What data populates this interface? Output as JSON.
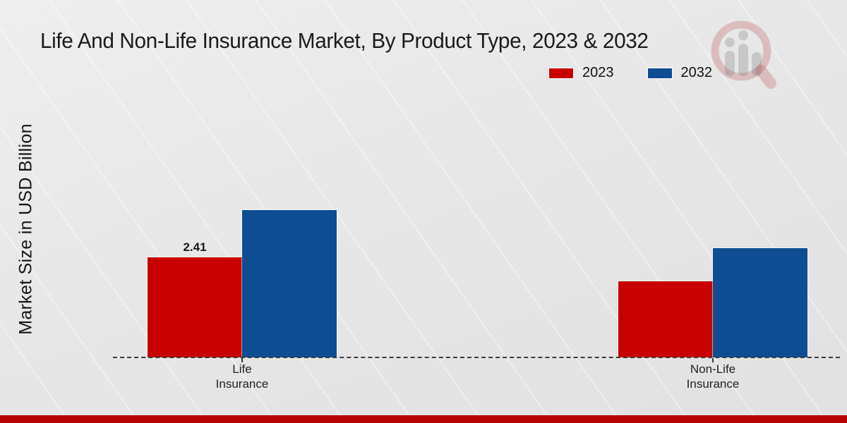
{
  "page": {
    "background_color": "#eaeaea",
    "footer_bar_color": "#b80404"
  },
  "header": {
    "title": "Life And Non-Life Insurance Market, By Product Type, 2023 & 2032"
  },
  "legend": {
    "items": [
      {
        "label": "2023",
        "color": "#c70101"
      },
      {
        "label": "2032",
        "color": "#0e4d92"
      }
    ]
  },
  "watermark": {
    "icon": "magnifier-bar-chart-logo"
  },
  "chart_data": {
    "type": "bar",
    "title": "Life And Non-Life Insurance Market, By Product Type, 2023 & 2032",
    "xlabel": "",
    "ylabel": "Market Size in USD Billion",
    "categories": [
      "Life Insurance",
      "Non-Life Insurance"
    ],
    "category_lines": [
      [
        "Life",
        "Insurance"
      ],
      [
        "Non-Life",
        "Insurance"
      ]
    ],
    "series": [
      {
        "name": "2023",
        "color": "#c70101",
        "values": [
          2.41,
          1.83
        ]
      },
      {
        "name": "2032",
        "color": "#0e4d92",
        "values": [
          3.55,
          2.63
        ]
      }
    ],
    "value_labels": [
      {
        "series": "2023",
        "category": "Life Insurance",
        "text": "2.41"
      }
    ],
    "ylim": [
      0,
      4.3
    ],
    "grid": false,
    "legend_position": "top-right",
    "baseline_style": "dashed"
  }
}
